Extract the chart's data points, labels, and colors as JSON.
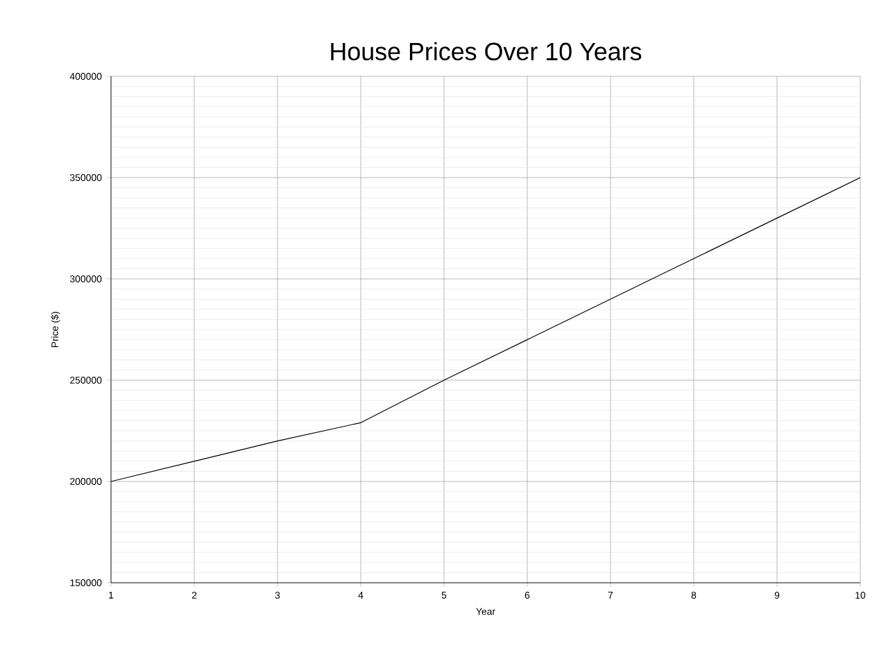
{
  "chart_data": {
    "type": "line",
    "title": "House Prices Over 10 Years",
    "xlabel": "Year",
    "ylabel": "Price ($)",
    "x": [
      1,
      2,
      3,
      4,
      5,
      6,
      7,
      8,
      9,
      10
    ],
    "values": [
      200000,
      210000,
      220000,
      229000,
      250000,
      270000,
      290000,
      310000,
      330000,
      350000
    ],
    "color": "#000000",
    "xlim": [
      1,
      10
    ],
    "xticks": [
      1,
      2,
      3,
      4,
      5,
      6,
      7,
      8,
      9,
      10
    ],
    "ylim": [
      150000,
      400000
    ],
    "yticks": [
      150000,
      200000,
      250000,
      300000,
      350000,
      400000
    ],
    "grid": true,
    "marker": "none",
    "line_style": "solid"
  }
}
